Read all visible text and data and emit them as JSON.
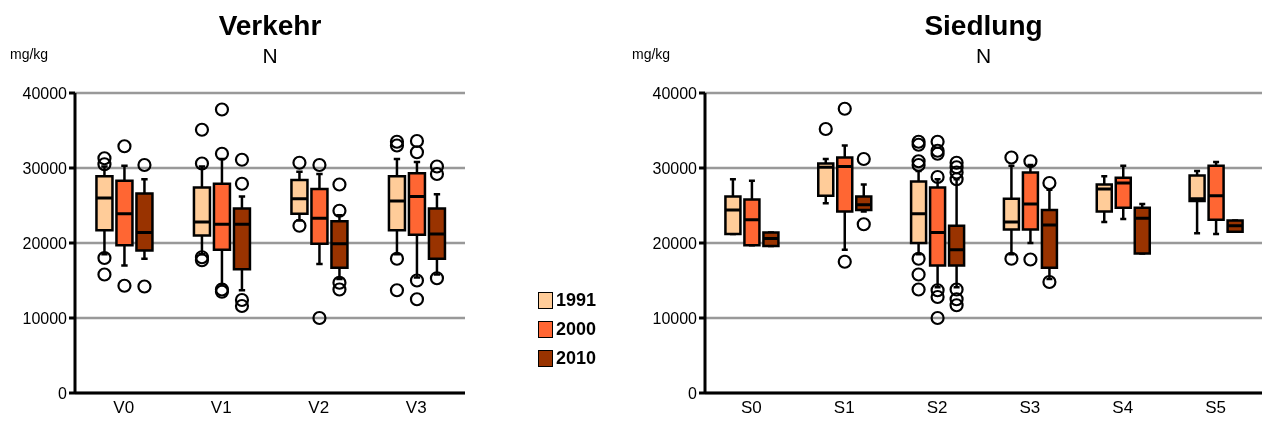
{
  "chart_data": [
    {
      "type": "box",
      "title": "Verkehr",
      "subtitle": "N",
      "ylabel": "mg/kg",
      "categories": [
        "V0",
        "V1",
        "V2",
        "V3"
      ],
      "ylim": [
        0,
        40000
      ],
      "yticks": [
        0,
        10000,
        20000,
        30000,
        40000
      ],
      "grid": "y",
      "legend": "right",
      "series": [
        {
          "name": "1991",
          "color": "#ffcc99",
          "boxes": [
            {
              "low": 18500,
              "q1": 21700,
              "median": 26000,
              "q3": 28900,
              "high": 30200,
              "outliers": [
                31300,
                30500,
                18000,
                15800
              ]
            },
            {
              "low": 18500,
              "q1": 21000,
              "median": 22800,
              "q3": 27400,
              "high": 30200,
              "outliers": [
                35100,
                30600,
                18100,
                17700
              ]
            },
            {
              "low": 23000,
              "q1": 23900,
              "median": 25900,
              "q3": 28400,
              "high": 29500,
              "outliers": [
                30700,
                22300
              ]
            },
            {
              "low": 18500,
              "q1": 21700,
              "median": 25600,
              "q3": 28900,
              "high": 31200,
              "outliers": [
                33500,
                33000,
                17900,
                13700
              ]
            }
          ]
        },
        {
          "name": "2000",
          "color": "#ff6633",
          "boxes": [
            {
              "low": 17000,
              "q1": 19700,
              "median": 23900,
              "q3": 28300,
              "high": 30300,
              "outliers": [
                32900,
                14300
              ]
            },
            {
              "low": 14500,
              "q1": 19100,
              "median": 22500,
              "q3": 27900,
              "high": 31200,
              "outliers": [
                37800,
                31900,
                13800,
                13500
              ]
            },
            {
              "low": 17200,
              "q1": 19900,
              "median": 23300,
              "q3": 27200,
              "high": 29200,
              "outliers": [
                30400,
                10000
              ]
            },
            {
              "low": 15400,
              "q1": 21100,
              "median": 26200,
              "q3": 29300,
              "high": 30800,
              "outliers": [
                33600,
                32100,
                15000,
                12500
              ]
            }
          ]
        },
        {
          "name": "2010",
          "color": "#993300",
          "boxes": [
            {
              "low": 17900,
              "q1": 19000,
              "median": 21400,
              "q3": 26600,
              "high": 28500,
              "outliers": [
                30400,
                14200
              ]
            },
            {
              "low": 13700,
              "q1": 16500,
              "median": 22500,
              "q3": 24600,
              "high": 26200,
              "outliers": [
                31100,
                27900,
                12400,
                11600
              ]
            },
            {
              "low": 15200,
              "q1": 16700,
              "median": 19900,
              "q3": 22900,
              "high": 23700,
              "outliers": [
                27800,
                24300,
                14700,
                13800
              ]
            },
            {
              "low": 15800,
              "q1": 17900,
              "median": 21200,
              "q3": 24600,
              "high": 26500,
              "outliers": [
                30200,
                29200,
                15300
              ]
            }
          ]
        }
      ]
    },
    {
      "type": "box",
      "title": "Siedlung",
      "subtitle": "N",
      "ylabel": "mg/kg",
      "categories": [
        "S0",
        "S1",
        "S2",
        "S3",
        "S4",
        "S5"
      ],
      "ylim": [
        0,
        40000
      ],
      "yticks": [
        0,
        10000,
        20000,
        30000,
        40000
      ],
      "grid": "y",
      "series": [
        {
          "color": "#ffcc99",
          "boxes": [
            {
              "low": 21200,
              "q1": 21200,
              "median": 24400,
              "q3": 26200,
              "high": 28500
            },
            {
              "low": 25300,
              "q1": 26300,
              "median": 30100,
              "q3": 30600,
              "high": 31200,
              "outliers": [
                35200
              ]
            },
            {
              "low": 18500,
              "q1": 20000,
              "median": 23900,
              "q3": 28200,
              "high": 29600,
              "outliers": [
                33500,
                33100,
                30900,
                30400,
                17900,
                15800,
                13800
              ]
            },
            {
              "low": 18500,
              "q1": 21800,
              "median": 22800,
              "q3": 25900,
              "high": 30300,
              "outliers": [
                31400,
                17900
              ]
            },
            {
              "low": 22800,
              "q1": 24200,
              "median": 27200,
              "q3": 27800,
              "high": 28900
            },
            {
              "low": 21300,
              "q1": 25600,
              "median": 25900,
              "q3": 29000,
              "high": 29600
            }
          ]
        },
        {
          "color": "#ff6633",
          "boxes": [
            {
              "low": 19700,
              "q1": 19700,
              "median": 23100,
              "q3": 25800,
              "high": 28300
            },
            {
              "low": 19100,
              "q1": 24200,
              "median": 30200,
              "q3": 31400,
              "high": 33000,
              "outliers": [
                37900,
                17500
              ]
            },
            {
              "low": 14100,
              "q1": 17000,
              "median": 21400,
              "q3": 27400,
              "high": 28500,
              "outliers": [
                33500,
                32300,
                31900,
                28800,
                13700,
                12800,
                10000
              ]
            },
            {
              "low": 20000,
              "q1": 21800,
              "median": 25200,
              "q3": 29400,
              "high": 30400,
              "outliers": [
                30900,
                17800
              ]
            },
            {
              "low": 23200,
              "q1": 24700,
              "median": 28000,
              "q3": 28700,
              "high": 30300
            },
            {
              "low": 21200,
              "q1": 23100,
              "median": 26300,
              "q3": 30300,
              "high": 30800
            }
          ]
        },
        {
          "color": "#993300",
          "boxes": [
            {
              "low": 19600,
              "q1": 19600,
              "median": 20600,
              "q3": 21400,
              "high": 21400
            },
            {
              "low": 24200,
              "q1": 24400,
              "median": 25100,
              "q3": 26200,
              "high": 27800,
              "outliers": [
                31200,
                22500
              ]
            },
            {
              "low": 14100,
              "q1": 17000,
              "median": 19100,
              "q3": 22300,
              "high": 28500,
              "outliers": [
                30700,
                30100,
                29400,
                28500,
                13800,
                12500,
                11700
              ]
            },
            {
              "low": 15200,
              "q1": 16700,
              "median": 22400,
              "q3": 24400,
              "high": 27100,
              "outliers": [
                28000,
                14800
              ]
            },
            {
              "low": 18600,
              "q1": 18600,
              "median": 23300,
              "q3": 24700,
              "high": 25200
            },
            {
              "low": 21500,
              "q1": 21500,
              "median": 22300,
              "q3": 23000,
              "high": 23000
            }
          ]
        }
      ]
    }
  ]
}
